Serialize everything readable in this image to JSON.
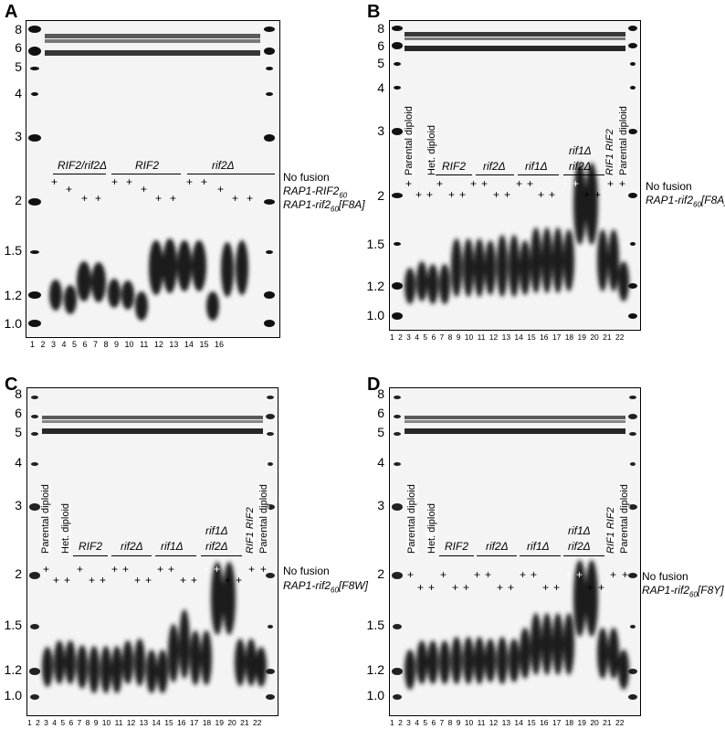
{
  "panels": [
    {
      "letter": "A",
      "sizes": [
        "8",
        "6",
        "5",
        "4",
        "3",
        "2",
        "1.5",
        "1.2",
        "1.0"
      ],
      "lane_numbers": "1  2  3  4  5  6  7  8  9 10 11 12 13 14 15 16",
      "group_labels": [
        "RIF2/rif2Δ",
        "RIF2",
        "rif2Δ"
      ],
      "vertical_labels": [],
      "legend": [
        "No fusion",
        "RAP1-RIF2",
        "RAP1-rif2",
        "[F8A]"
      ],
      "legend_sub": "60"
    },
    {
      "letter": "B",
      "sizes": [
        "8",
        "6",
        "5",
        "4",
        "3",
        "2",
        "1.5",
        "1.2",
        "1.0"
      ],
      "lane_numbers": "1  2  3  4  5  6  7  8  9 10 11 12 13 14 15 16 17 18 19 20 21 22",
      "group_labels": [
        "RIF2",
        "rif2Δ",
        "rif1Δ",
        "rif1Δ",
        "rif2Δ"
      ],
      "vertical_labels": [
        "Parental diploid",
        "Het. diploid",
        "RIF1 RIF2",
        "Parental diploid"
      ],
      "legend": [
        "No fusion",
        "RAP1-rif2",
        "[F8A]"
      ],
      "legend_sub": "60"
    },
    {
      "letter": "C",
      "sizes": [
        "8",
        "6",
        "5",
        "4",
        "3",
        "2",
        "1.5",
        "1.2",
        "1.0"
      ],
      "lane_numbers": "1  2  3  4  5  6  7  8  9 10 11 12 13 14 15 16 17 18 19 20 21 22",
      "group_labels": [
        "RIF2",
        "rif2Δ",
        "rif1Δ",
        "rif1Δ",
        "rif2Δ"
      ],
      "vertical_labels": [
        "Parental diploid",
        "Het. diploid",
        "RIF1 RIF2",
        "Parental diploid"
      ],
      "legend": [
        "No fusion",
        "RAP1-rif2",
        "[F8W]"
      ],
      "legend_sub": "60"
    },
    {
      "letter": "D",
      "sizes": [
        "8",
        "6",
        "5",
        "4",
        "3",
        "2",
        "1.5",
        "1.2",
        "1.0"
      ],
      "lane_numbers": "1  2  3  4  5  6  7  8  9 10 11 12 13 14 15 16 17 18 19 20 21 22",
      "group_labels": [
        "RIF2",
        "rif2Δ",
        "rif1Δ",
        "rif1Δ",
        "rif2Δ"
      ],
      "vertical_labels": [
        "Parental diploid",
        "Het. diploid",
        "RIF1 RIF2",
        "Parental diploid"
      ],
      "legend": [
        "No fusion",
        "RAP1-rif2",
        "[F8Y]"
      ],
      "legend_sub": "60"
    }
  ]
}
